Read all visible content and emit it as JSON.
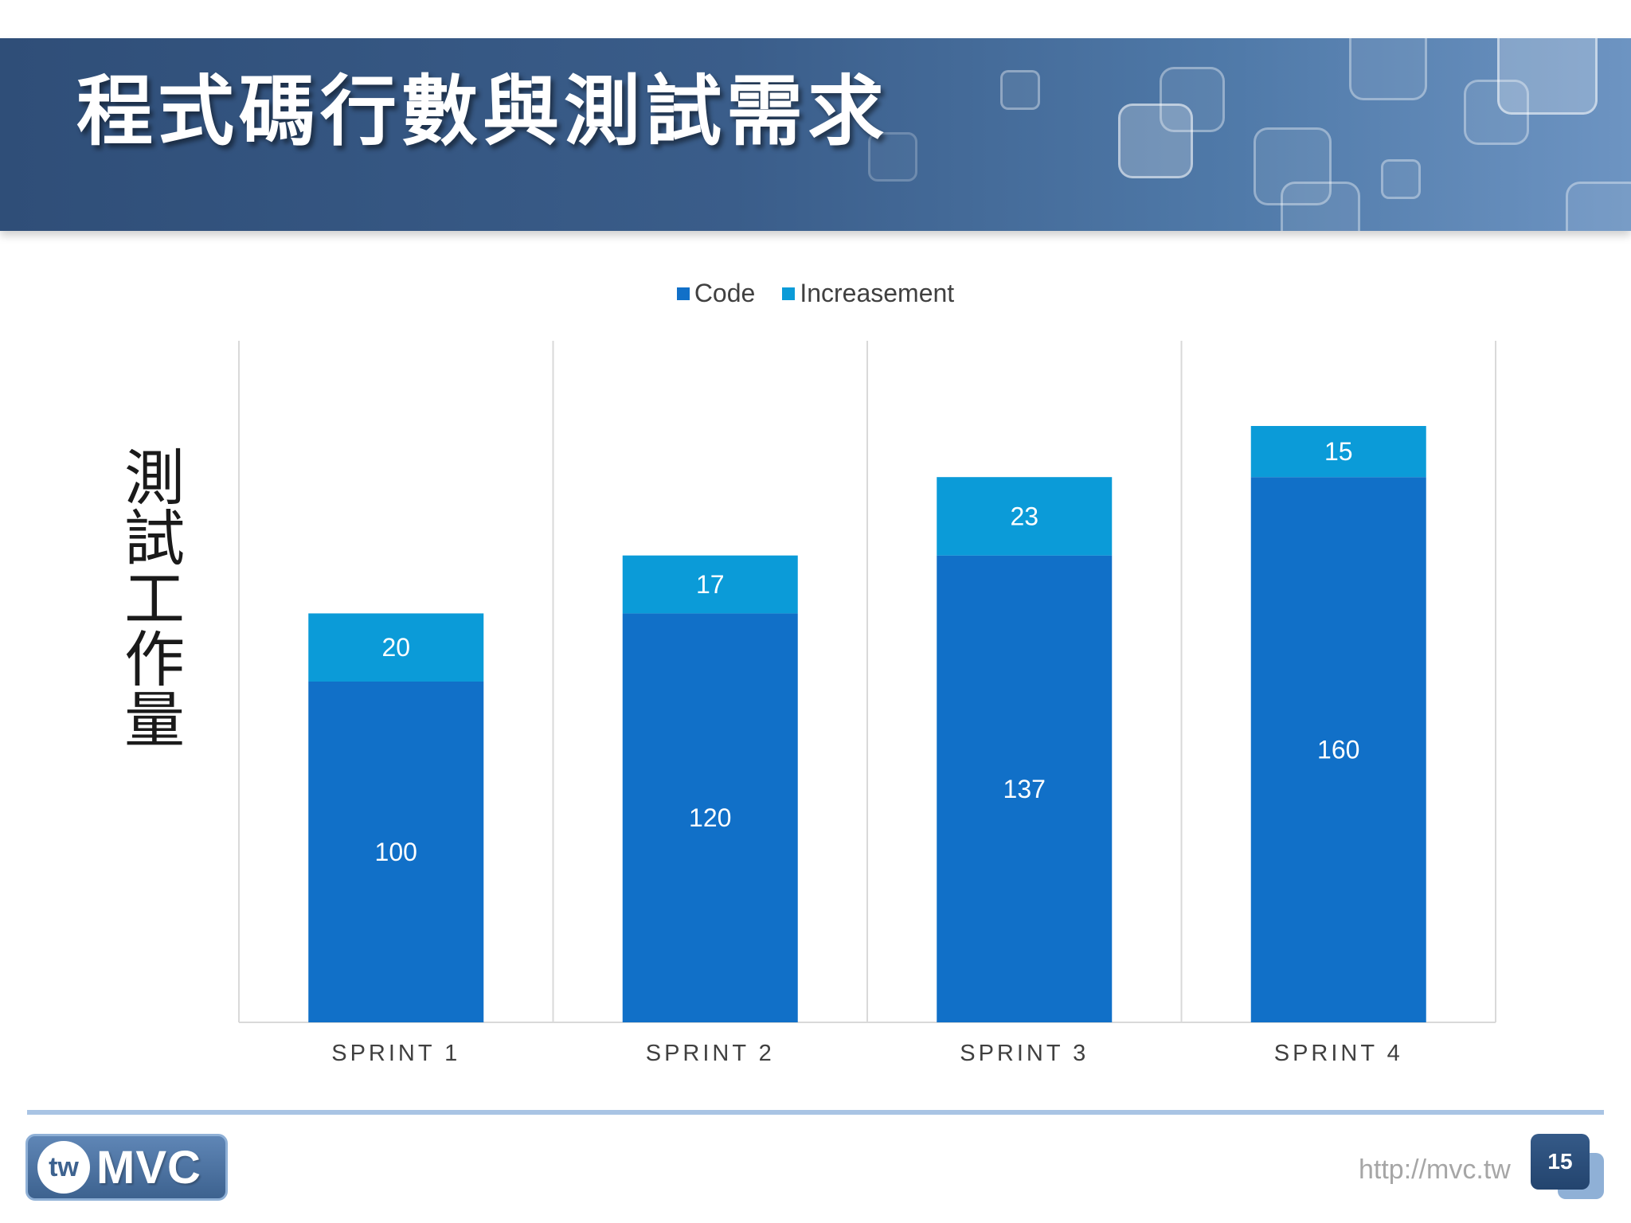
{
  "slide": {
    "title": "程式碼行數與測試需求",
    "url": "http://mvc.tw",
    "page_number": "15",
    "logo": {
      "badge": "tw",
      "text": "MVC"
    }
  },
  "colors": {
    "banner": "#3a5d8a",
    "code": "#1170c8",
    "increasement": "#0b9bd8",
    "grid": "#d9d9d9"
  },
  "chart_data": {
    "type": "bar",
    "stacked": true,
    "ylabel": "測試工作量",
    "xlabel": "",
    "categories": [
      "SPRINT 1",
      "SPRINT 2",
      "SPRINT 3",
      "SPRINT 4"
    ],
    "series": [
      {
        "name": "Code",
        "values": [
          100,
          120,
          137,
          160
        ],
        "color": "#1170c8"
      },
      {
        "name": "Increasement",
        "values": [
          20,
          17,
          23,
          15
        ],
        "color": "#0b9bd8"
      }
    ],
    "ylim": [
      0,
      200
    ],
    "legend": "top-center",
    "grid": "vertical category separators"
  }
}
